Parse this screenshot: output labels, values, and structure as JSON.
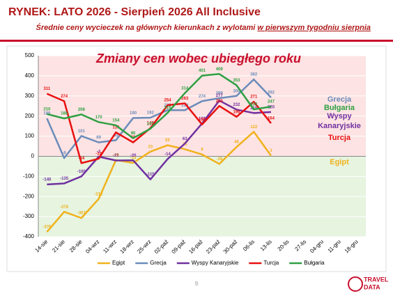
{
  "chart_data": {
    "type": "line",
    "title": "RYNEK: LATO 2026 - Sierpień 2026 All Inclusive",
    "subtitle": "Średnie ceny wycieczek na głównych kierunkach z wylotami",
    "subtitle_underlined": "w pierwszym tygodniu sierpnia",
    "chart_title": "Zmiany cen wobec ubiegłego roku",
    "categories": [
      "14-sie",
      "21-sie",
      "28-sie",
      "04-wrz",
      "11-wrz",
      "18-wrz",
      "25-wrz",
      "02-paź",
      "09-paź",
      "16-paź",
      "23-paź",
      "30-paź",
      "06-lis",
      "13-lis",
      "20-lis",
      "27-lis",
      "04-gru",
      "11-gru",
      "18-gru"
    ],
    "series": [
      {
        "name": "Egipt",
        "color": "#f0b21c",
        "values": [
          -376,
          -276,
          -307,
          -212,
          -19,
          -33,
          23,
          55,
          35,
          9,
          -38,
          46,
          122,
          3,
          null,
          null,
          null,
          null,
          null
        ]
      },
      {
        "name": "Grecja",
        "color": "#6b8cba",
        "values": [
          188,
          -9,
          101,
          69,
          80,
          190,
          192,
          229,
          229,
          274,
          289,
          300,
          382,
          292,
          null,
          null,
          null,
          null,
          null
        ]
      },
      {
        "name": "Wyspy Kanaryjskie",
        "color": "#7030a0",
        "values": [
          -140,
          -135,
          -100,
          -2,
          -21,
          -20,
          -115,
          -14,
          63,
          163,
          277,
          232,
          215,
          220,
          null,
          null,
          null,
          null,
          null
        ]
      },
      {
        "name": "Turcja",
        "color": "#e81010",
        "values": [
          311,
          274,
          -34,
          -12,
          119,
          69,
          140,
          254,
          263,
          158,
          250,
          196,
          271,
          164,
          null,
          null,
          null,
          null,
          null
        ]
      },
      {
        "name": "Bułgaria",
        "color": "#2ea043",
        "values": [
          210,
          188,
          208,
          170,
          154,
          90,
          137,
          216,
          314,
          401,
          409,
          353,
          233,
          247,
          null,
          null,
          null,
          null,
          null
        ]
      }
    ],
    "annotations": [
      {
        "text": "Grecja",
        "color": "#6b8cba"
      },
      {
        "text": "Bułgaria",
        "color": "#2ea043"
      },
      {
        "text": "Wyspy",
        "color": "#7030a0"
      },
      {
        "text": "Kanaryjskie",
        "color": "#7030a0"
      },
      {
        "text": "Turcja",
        "color": "#e81010"
      },
      {
        "text": "Egipt",
        "color": "#f0b21c"
      }
    ],
    "ylim": [
      -400,
      500
    ],
    "yticks": [
      -400,
      -300,
      -200,
      -100,
      0,
      100,
      200,
      300,
      400,
      500
    ],
    "grid": true,
    "legend": "bottom",
    "page_number": "9",
    "logo": [
      "TRAVEL",
      "DATA"
    ]
  }
}
